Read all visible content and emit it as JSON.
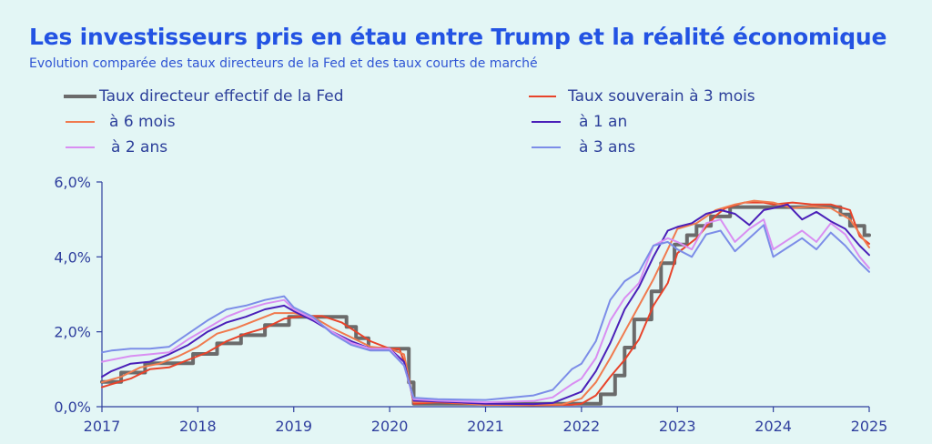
{
  "title": "Les investisseurs pris en étau entre Trump et la réalité économique",
  "subtitle": "Evolution comparée des taux directeurs de la Fed et des taux courts de marché",
  "colors": {
    "background": "#e3f6f5",
    "title": "#2353e3",
    "axis": "#2f3f9e"
  },
  "chart_data": {
    "type": "line",
    "title": "Les investisseurs pris en étau entre Trump et la réalité économique",
    "subtitle": "Evolution comparée des taux directeurs de la Fed et des taux courts de marché",
    "xlabel": "",
    "ylabel": "",
    "xlim": [
      2017,
      2025
    ],
    "ylim": [
      0,
      6
    ],
    "x_ticks": [
      "2017",
      "2018",
      "2019",
      "2020",
      "2021",
      "2022",
      "2023",
      "2024",
      "2025"
    ],
    "y_ticks": [
      "0,0%",
      "2,0%",
      "4,0%",
      "6,0%"
    ],
    "grid": false,
    "legend_position": "top",
    "series": [
      {
        "name": "Taux directeur effectif de la Fed",
        "color": "#6b6b6b",
        "width": 4,
        "x": [
          2017.0,
          2017.2,
          2017.2,
          2017.45,
          2017.45,
          2017.95,
          2017.95,
          2018.2,
          2018.2,
          2018.45,
          2018.45,
          2018.7,
          2018.7,
          2018.95,
          2018.95,
          2019.55,
          2019.55,
          2019.65,
          2019.65,
          2019.78,
          2019.78,
          2020.2,
          2020.2,
          2020.25,
          2020.25,
          2022.2,
          2022.2,
          2022.35,
          2022.35,
          2022.45,
          2022.45,
          2022.55,
          2022.55,
          2022.73,
          2022.73,
          2022.83,
          2022.83,
          2022.97,
          2022.97,
          2023.1,
          2023.1,
          2023.2,
          2023.2,
          2023.35,
          2023.35,
          2023.55,
          2023.55,
          2024.7,
          2024.7,
          2024.8,
          2024.8,
          2024.95,
          2024.95,
          2025.0
        ],
        "y": [
          0.66,
          0.66,
          0.91,
          0.91,
          1.16,
          1.16,
          1.41,
          1.41,
          1.69,
          1.69,
          1.91,
          1.91,
          2.18,
          2.18,
          2.4,
          2.4,
          2.13,
          2.13,
          1.83,
          1.83,
          1.55,
          1.55,
          0.65,
          0.65,
          0.08,
          0.08,
          0.33,
          0.33,
          0.83,
          0.83,
          1.58,
          1.58,
          2.33,
          2.33,
          3.08,
          3.08,
          3.83,
          3.83,
          4.33,
          4.33,
          4.58,
          4.58,
          4.83,
          4.83,
          5.08,
          5.08,
          5.33,
          5.33,
          5.13,
          5.13,
          4.83,
          4.83,
          4.58,
          4.58
        ]
      },
      {
        "name": "Taux souverain à 3 mois",
        "color": "#e8432a",
        "width": 2,
        "x": [
          2017.0,
          2017.1,
          2017.3,
          2017.5,
          2017.7,
          2017.9,
          2018.1,
          2018.3,
          2018.5,
          2018.7,
          2018.9,
          2019.1,
          2019.3,
          2019.5,
          2019.65,
          2019.8,
          2020.0,
          2020.1,
          2020.18,
          2020.25,
          2020.5,
          2021.0,
          2021.5,
          2021.9,
          2022.0,
          2022.15,
          2022.3,
          2022.45,
          2022.6,
          2022.75,
          2022.9,
          2023.0,
          2023.2,
          2023.4,
          2023.5,
          2023.7,
          2023.9,
          2024.0,
          2024.2,
          2024.4,
          2024.6,
          2024.8,
          2024.9,
          2025.0
        ],
        "y": [
          0.52,
          0.6,
          0.75,
          1.0,
          1.05,
          1.25,
          1.45,
          1.75,
          1.95,
          2.1,
          2.35,
          2.42,
          2.42,
          2.25,
          2.0,
          1.75,
          1.55,
          1.55,
          1.0,
          0.08,
          0.12,
          0.05,
          0.04,
          0.05,
          0.08,
          0.3,
          0.8,
          1.25,
          1.8,
          2.7,
          3.3,
          4.1,
          4.5,
          5.1,
          5.3,
          5.45,
          5.45,
          5.4,
          5.45,
          5.4,
          5.4,
          5.25,
          4.55,
          4.35
        ]
      },
      {
        "name": "à 6 mois",
        "color": "#f07a4e",
        "width": 2,
        "x": [
          2017.0,
          2017.2,
          2017.4,
          2017.6,
          2017.8,
          2018.0,
          2018.2,
          2018.4,
          2018.6,
          2018.8,
          2019.0,
          2019.2,
          2019.4,
          2019.6,
          2019.8,
          2020.0,
          2020.15,
          2020.25,
          2020.5,
          2021.0,
          2021.5,
          2021.8,
          2022.0,
          2022.15,
          2022.3,
          2022.45,
          2022.6,
          2022.75,
          2022.9,
          2023.0,
          2023.2,
          2023.4,
          2023.6,
          2023.8,
          2024.0,
          2024.2,
          2024.4,
          2024.6,
          2024.8,
          2025.0
        ],
        "y": [
          0.65,
          0.8,
          1.05,
          1.15,
          1.35,
          1.6,
          1.95,
          2.1,
          2.3,
          2.5,
          2.5,
          2.4,
          2.1,
          1.85,
          1.6,
          1.55,
          1.4,
          0.12,
          0.14,
          0.05,
          0.05,
          0.06,
          0.22,
          0.65,
          1.3,
          2.0,
          2.7,
          3.4,
          4.2,
          4.75,
          4.9,
          5.25,
          5.4,
          5.5,
          5.45,
          5.3,
          5.35,
          5.3,
          5.0,
          4.25
        ]
      },
      {
        "name": "à 1 an",
        "color": "#4a1fb8",
        "width": 2,
        "x": [
          2017.0,
          2017.1,
          2017.3,
          2017.5,
          2017.7,
          2017.9,
          2018.1,
          2018.3,
          2018.5,
          2018.7,
          2018.9,
          2019.0,
          2019.2,
          2019.4,
          2019.6,
          2019.8,
          2020.0,
          2020.15,
          2020.25,
          2020.5,
          2021.0,
          2021.5,
          2021.7,
          2022.0,
          2022.15,
          2022.3,
          2022.45,
          2022.6,
          2022.75,
          2022.9,
          2023.0,
          2023.15,
          2023.3,
          2023.45,
          2023.6,
          2023.75,
          2023.9,
          2024.0,
          2024.15,
          2024.3,
          2024.45,
          2024.6,
          2024.75,
          2024.9,
          2025.0
        ],
        "y": [
          0.8,
          0.95,
          1.15,
          1.2,
          1.4,
          1.65,
          2.0,
          2.25,
          2.4,
          2.6,
          2.7,
          2.55,
          2.3,
          2.0,
          1.75,
          1.55,
          1.55,
          1.2,
          0.16,
          0.14,
          0.08,
          0.07,
          0.1,
          0.4,
          0.95,
          1.7,
          2.6,
          3.2,
          4.0,
          4.7,
          4.8,
          4.9,
          5.15,
          5.25,
          5.15,
          4.85,
          5.25,
          5.3,
          5.4,
          5.0,
          5.2,
          4.95,
          4.75,
          4.3,
          4.05
        ]
      },
      {
        "name": "à 2 ans",
        "color": "#d98ef2",
        "width": 2,
        "x": [
          2017.0,
          2017.1,
          2017.3,
          2017.5,
          2017.7,
          2017.9,
          2018.1,
          2018.3,
          2018.5,
          2018.7,
          2018.9,
          2019.0,
          2019.2,
          2019.4,
          2019.6,
          2019.8,
          2020.0,
          2020.15,
          2020.25,
          2020.5,
          2021.0,
          2021.5,
          2021.7,
          2021.9,
          2022.0,
          2022.15,
          2022.3,
          2022.45,
          2022.6,
          2022.75,
          2022.9,
          2023.0,
          2023.15,
          2023.3,
          2023.45,
          2023.6,
          2023.75,
          2023.9,
          2024.0,
          2024.15,
          2024.3,
          2024.45,
          2024.6,
          2024.75,
          2024.9,
          2025.0
        ],
        "y": [
          1.2,
          1.25,
          1.35,
          1.4,
          1.45,
          1.8,
          2.1,
          2.4,
          2.6,
          2.75,
          2.85,
          2.6,
          2.35,
          2.0,
          1.7,
          1.55,
          1.55,
          1.1,
          0.2,
          0.16,
          0.12,
          0.15,
          0.25,
          0.6,
          0.75,
          1.3,
          2.3,
          2.9,
          3.3,
          4.3,
          4.5,
          4.4,
          4.2,
          4.9,
          5.0,
          4.4,
          4.75,
          5.0,
          4.2,
          4.45,
          4.7,
          4.4,
          4.9,
          4.6,
          4.0,
          3.7
        ]
      },
      {
        "name": "à 3 ans",
        "color": "#7c8de8",
        "width": 2,
        "x": [
          2017.0,
          2017.1,
          2017.3,
          2017.5,
          2017.7,
          2017.9,
          2018.1,
          2018.3,
          2018.5,
          2018.7,
          2018.9,
          2019.0,
          2019.2,
          2019.4,
          2019.6,
          2019.8,
          2020.0,
          2020.15,
          2020.25,
          2020.5,
          2021.0,
          2021.5,
          2021.7,
          2021.9,
          2022.0,
          2022.15,
          2022.3,
          2022.45,
          2022.6,
          2022.75,
          2022.9,
          2023.0,
          2023.15,
          2023.3,
          2023.45,
          2023.6,
          2023.75,
          2023.9,
          2024.0,
          2024.15,
          2024.3,
          2024.45,
          2024.6,
          2024.75,
          2024.9,
          2025.0
        ],
        "y": [
          1.45,
          1.5,
          1.55,
          1.55,
          1.6,
          1.95,
          2.3,
          2.6,
          2.7,
          2.85,
          2.95,
          2.65,
          2.4,
          1.95,
          1.65,
          1.5,
          1.5,
          1.1,
          0.24,
          0.2,
          0.18,
          0.3,
          0.45,
          1.0,
          1.15,
          1.75,
          2.85,
          3.35,
          3.6,
          4.3,
          4.4,
          4.2,
          4.0,
          4.6,
          4.7,
          4.15,
          4.5,
          4.85,
          4.0,
          4.25,
          4.5,
          4.2,
          4.65,
          4.3,
          3.85,
          3.6
        ]
      }
    ]
  }
}
